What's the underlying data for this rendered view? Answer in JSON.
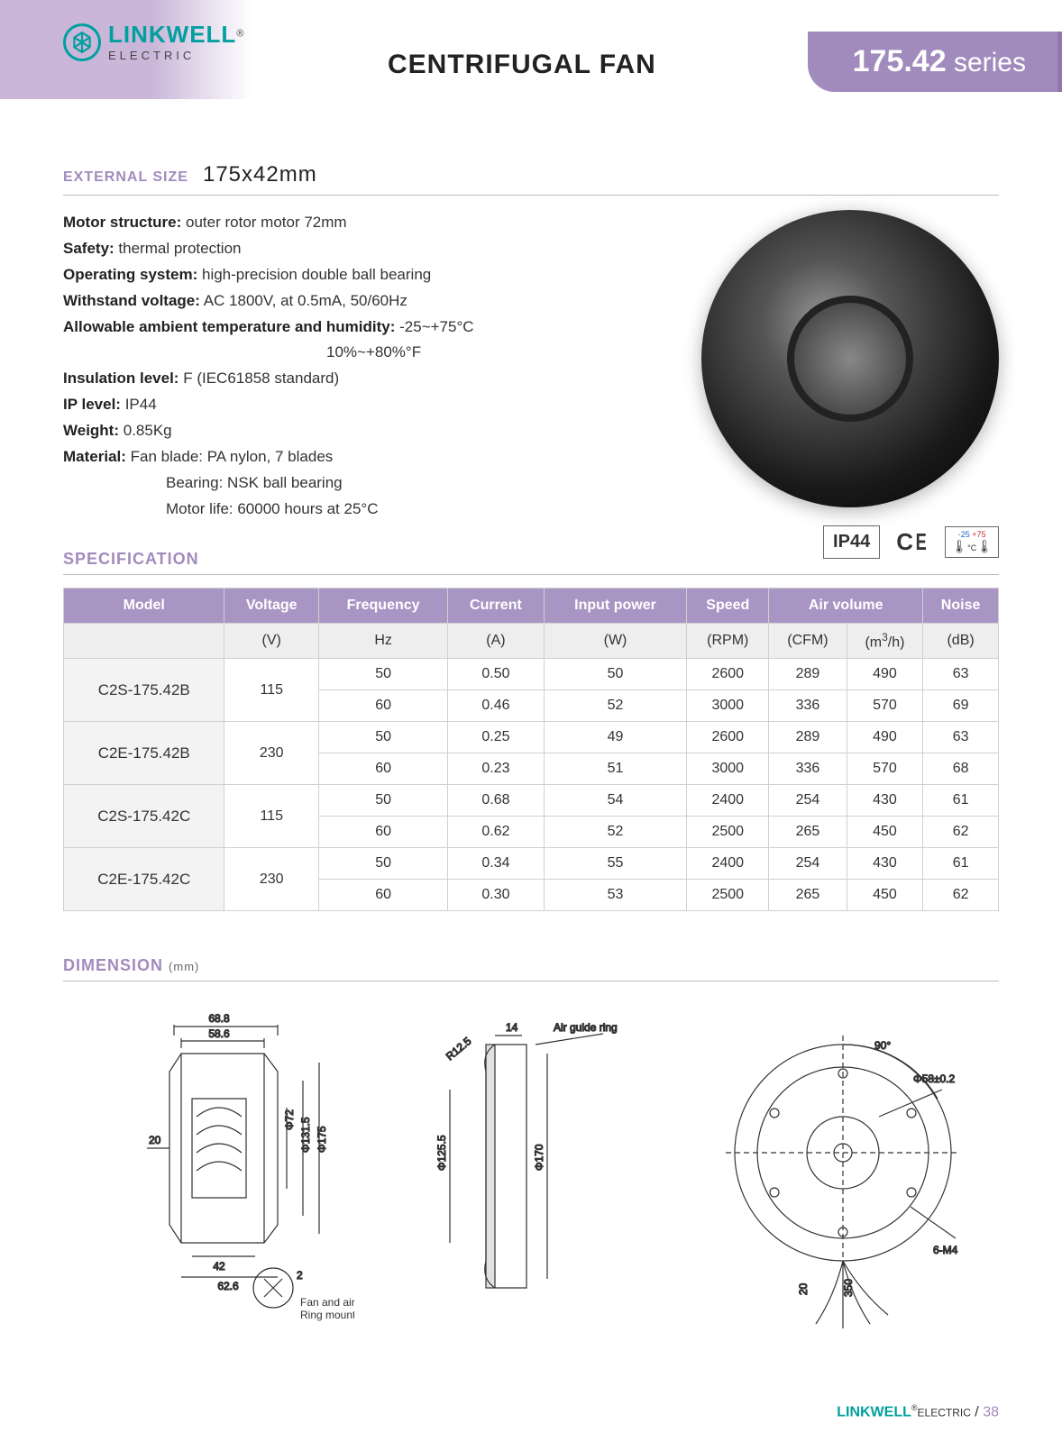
{
  "brand": {
    "name": "LINKWELL",
    "sub": "ELECTRIC",
    "reg": "®"
  },
  "page_title": "CENTRIFUGAL FAN",
  "series": {
    "num": "175.42",
    "word": "series"
  },
  "ext_size": {
    "label": "EXTERNAL SIZE",
    "value": "175x42mm"
  },
  "details": {
    "motor_structure_k": "Motor structure:",
    "motor_structure_v": "outer rotor motor 72mm",
    "safety_k": "Safety:",
    "safety_v": "thermal protection",
    "os_k": "Operating system:",
    "os_v": "high-precision double ball bearing",
    "wv_k": "Withstand voltage:",
    "wv_v": "AC 1800V, at 0.5mA, 50/60Hz",
    "at_k": "Allowable ambient temperature and humidity:",
    "at_v": "-25~+75°C",
    "at_v2": "10%~+80%°F",
    "il_k": "Insulation level:",
    "il_v": "F (IEC61858 standard)",
    "ip_k": "IP level:",
    "ip_v": "IP44",
    "w_k": "Weight:",
    "w_v": "0.85Kg",
    "m_k": "Material:",
    "m_v1": "Fan blade: PA nylon, 7 blades",
    "m_v2": "Bearing: NSK ball bearing",
    "m_v3": "Motor life: 60000 hours at 25°C"
  },
  "certs": {
    "ip": "IP44",
    "ce": "CE",
    "temp_lo": "-25",
    "temp_hi": "+75",
    "temp_unit": "°C"
  },
  "spec_title": "SPECIFICATION",
  "table": {
    "headers": [
      "Model",
      "Voltage",
      "Frequency",
      "Current",
      "Input power",
      "Speed",
      "Air volume",
      "Noise"
    ],
    "units": [
      "",
      "(V)",
      "Hz",
      "(A)",
      "(W)",
      "(RPM)",
      "(CFM)",
      "(m³/h)",
      "(dB)"
    ],
    "rows": [
      {
        "model": "C2S-175.42B",
        "voltage": "115",
        "sub": [
          [
            "50",
            "0.50",
            "50",
            "2600",
            "289",
            "490",
            "63"
          ],
          [
            "60",
            "0.46",
            "52",
            "3000",
            "336",
            "570",
            "69"
          ]
        ]
      },
      {
        "model": "C2E-175.42B",
        "voltage": "230",
        "sub": [
          [
            "50",
            "0.25",
            "49",
            "2600",
            "289",
            "490",
            "63"
          ],
          [
            "60",
            "0.23",
            "51",
            "3000",
            "336",
            "570",
            "68"
          ]
        ]
      },
      {
        "model": "C2S-175.42C",
        "voltage": "115",
        "sub": [
          [
            "50",
            "0.68",
            "54",
            "2400",
            "254",
            "430",
            "61"
          ],
          [
            "60",
            "0.62",
            "52",
            "2500",
            "265",
            "450",
            "62"
          ]
        ]
      },
      {
        "model": "C2E-175.42C",
        "voltage": "230",
        "sub": [
          [
            "50",
            "0.34",
            "55",
            "2400",
            "254",
            "430",
            "61"
          ],
          [
            "60",
            "0.30",
            "53",
            "2500",
            "265",
            "450",
            "62"
          ]
        ]
      }
    ]
  },
  "dim_title": "DIMENSION",
  "dim_unit": "(mm)",
  "drawing_labels": {
    "d1_top1": "68.8",
    "d1_top2": "58.6",
    "d1_left": "20",
    "d1_phi1": "Φ72",
    "d1_phi2": "Φ131.5",
    "d1_phi3": "Φ175",
    "d1_bot1": "42",
    "d1_bot2": "62.6",
    "d1_note": "Fan and air guide\nRing mounting spacing",
    "d1_c": "2",
    "d2_top": "14",
    "d2_r": "R12.5",
    "d2_label": "Air guide ring",
    "d2_phi1": "Φ125.5",
    "d2_phi2": "Φ170",
    "d3_ang": "90°",
    "d3_phi": "Φ58±0.2",
    "d3_m": "6-M4",
    "d3_h": "20",
    "d3_w": "350"
  },
  "footer": {
    "brand": "LINKWELL",
    "sub": "ELECTRIC",
    "sep": " / ",
    "page": "38"
  }
}
